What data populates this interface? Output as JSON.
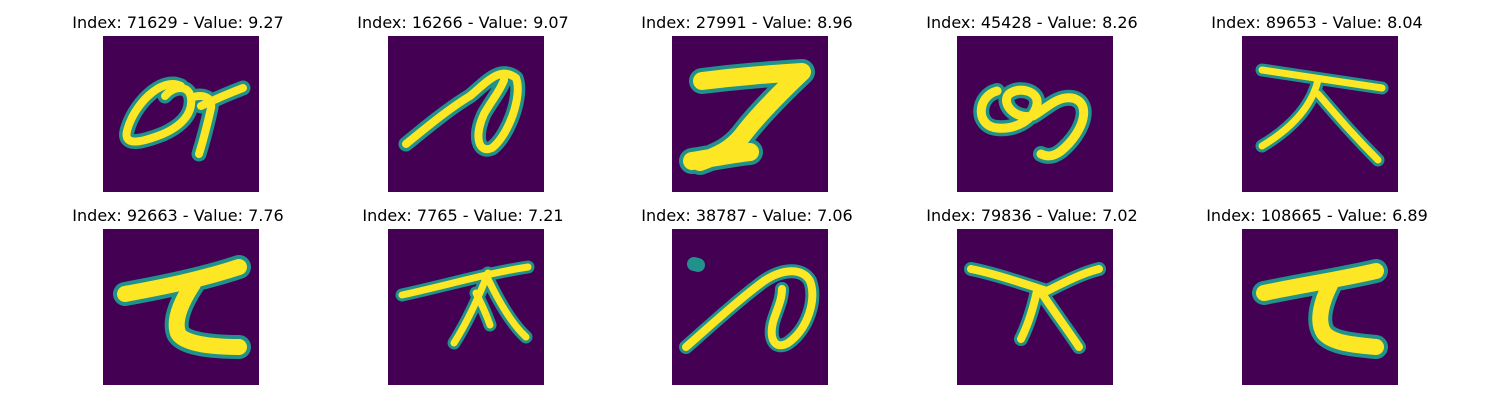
{
  "image_colors": {
    "background": "#440154",
    "stroke_core": "#fde725",
    "stroke_edge": "#21918c"
  },
  "panels": [
    {
      "index": "71629",
      "value": "9.27",
      "title": "Index: 71629 - Value: 9.27"
    },
    {
      "index": "16266",
      "value": "9.07",
      "title": "Index: 16266 - Value: 9.07"
    },
    {
      "index": "27991",
      "value": "8.96",
      "title": "Index: 27991 - Value: 8.96"
    },
    {
      "index": "45428",
      "value": "8.26",
      "title": "Index: 45428 - Value: 8.26"
    },
    {
      "index": "89653",
      "value": "8.04",
      "title": "Index: 89653 - Value: 8.04"
    },
    {
      "index": "92663",
      "value": "7.76",
      "title": "Index: 92663 - Value: 7.76"
    },
    {
      "index": "7765",
      "value": "7.21",
      "title": "Index: 7765 - Value: 7.21"
    },
    {
      "index": "38787",
      "value": "7.06",
      "title": "Index: 38787 - Value: 7.06"
    },
    {
      "index": "79836",
      "value": "7.02",
      "title": "Index: 79836 - Value: 7.02"
    },
    {
      "index": "108665",
      "value": "6.89",
      "title": "Index: 108665 - Value: 6.89"
    }
  ]
}
